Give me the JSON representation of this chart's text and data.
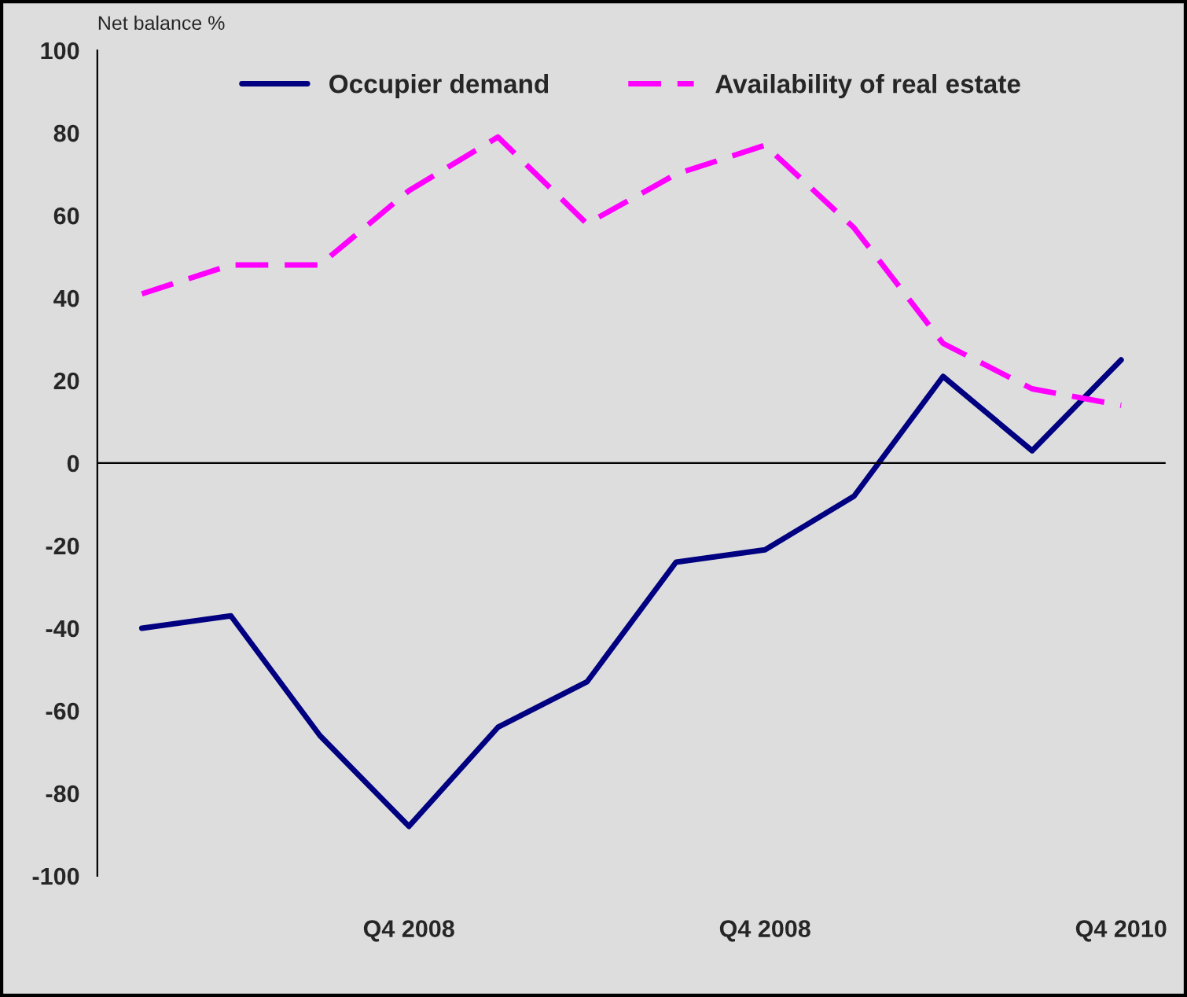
{
  "chart_data": {
    "type": "line",
    "ylabel": "Net balance %",
    "categories": [
      null,
      null,
      null,
      "Q4 2008",
      null,
      null,
      null,
      "Q4 2008",
      null,
      null,
      null,
      "Q4 2010"
    ],
    "series": [
      {
        "name": "Occupier demand",
        "color": "#000080",
        "line_style": "solid",
        "values": [
          -40,
          -37,
          -66,
          -88,
          -64,
          -53,
          -24,
          -21,
          -8,
          21,
          3,
          25
        ]
      },
      {
        "name": "Availability of real estate",
        "color": "#ff00ff",
        "line_style": "dashed",
        "values": [
          41,
          48,
          48,
          66,
          79,
          58,
          70,
          77,
          57,
          29,
          18,
          14
        ]
      }
    ],
    "ylim": [
      -100,
      100
    ],
    "yticks": [
      -100,
      -80,
      -60,
      -40,
      -20,
      0,
      20,
      40,
      60,
      80,
      100
    ],
    "ref_lines": [
      {
        "axis": "y",
        "value": 0,
        "color": "#000000"
      }
    ],
    "grid": false,
    "legend": "top",
    "marker": "none"
  }
}
